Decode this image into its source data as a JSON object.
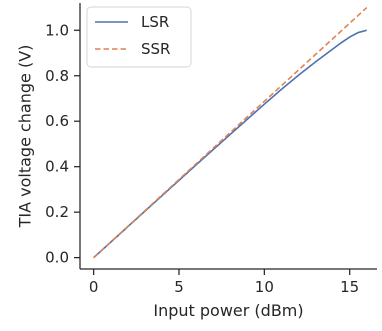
{
  "chart_data": {
    "type": "line",
    "xlabel": "Input power (dBm)",
    "ylabel": "TIA voltage change (V)",
    "xlim": [
      -0.8,
      16.6
    ],
    "ylim": [
      -0.05,
      1.12
    ],
    "xticks": [
      0,
      5,
      10,
      15
    ],
    "yticks": [
      0.0,
      0.2,
      0.4,
      0.6,
      0.8,
      1.0
    ],
    "xtick_labels": [
      "0",
      "5",
      "10",
      "15"
    ],
    "ytick_labels": [
      "0.0",
      "0.2",
      "0.4",
      "0.6",
      "0.8",
      "1.0"
    ],
    "grid": false,
    "legend_position": "top-left",
    "series": [
      {
        "name": "LSR",
        "color": "#4c72b0",
        "dash": "solid",
        "x": [
          0,
          2,
          4,
          6,
          8,
          10,
          11,
          12,
          13,
          14,
          14.5,
          15,
          15.5,
          16
        ],
        "y": [
          0.0,
          0.136,
          0.272,
          0.408,
          0.542,
          0.675,
          0.74,
          0.802,
          0.861,
          0.917,
          0.945,
          0.97,
          0.99,
          1.0
        ]
      },
      {
        "name": "SSR",
        "color": "#dd8452",
        "dash": "dashed",
        "x": [
          0,
          16
        ],
        "y": [
          0.0,
          1.1
        ]
      }
    ]
  }
}
